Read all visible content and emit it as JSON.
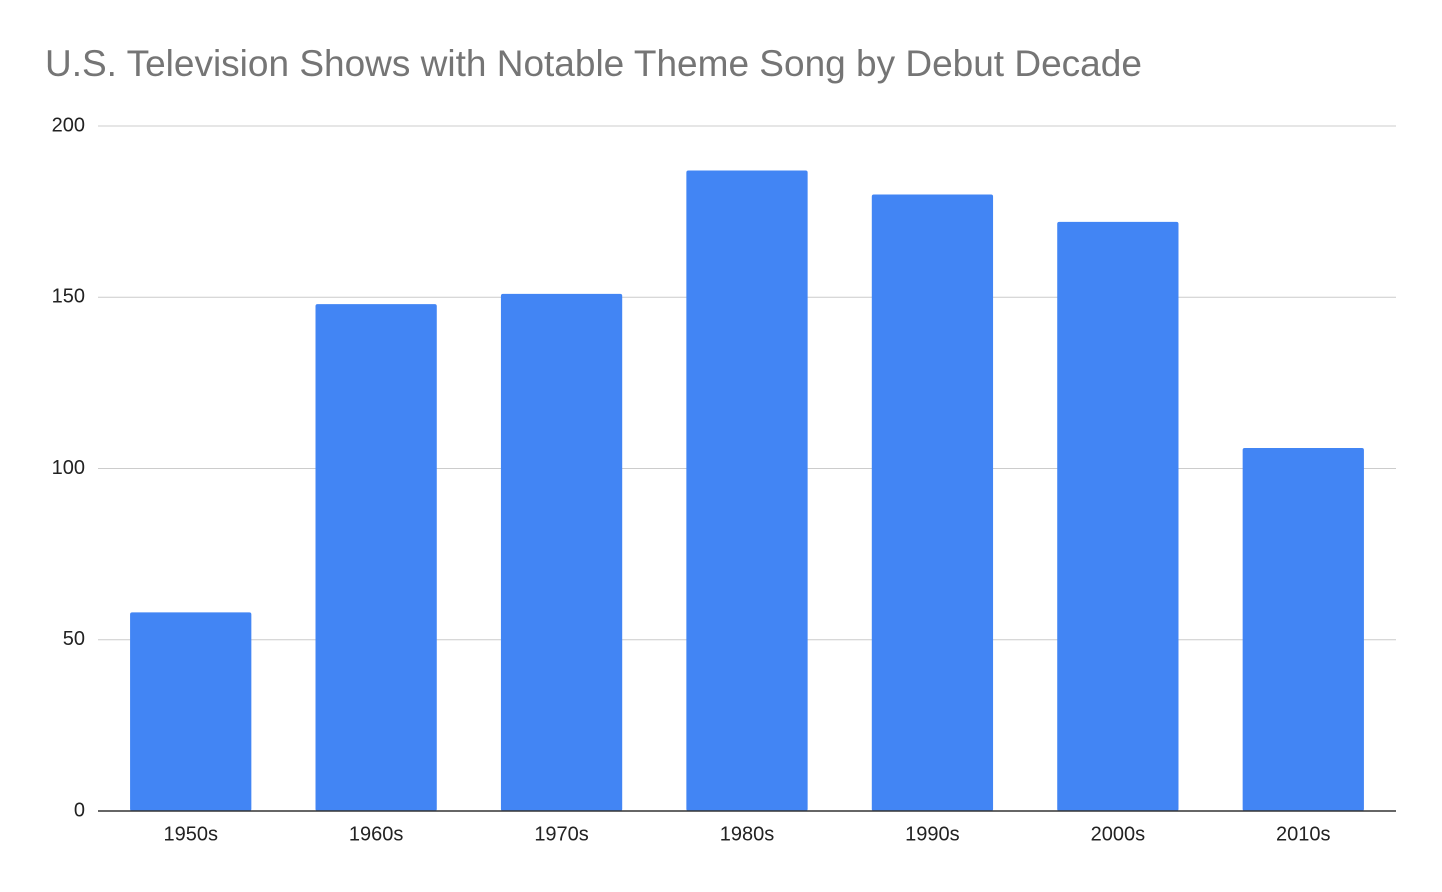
{
  "chart_data": {
    "type": "bar",
    "title": "U.S. Television Shows with Notable Theme Song by Debut Decade",
    "categories": [
      "1950s",
      "1960s",
      "1970s",
      "1980s",
      "1990s",
      "2000s",
      "2010s"
    ],
    "values": [
      58,
      148,
      151,
      187,
      180,
      172,
      106
    ],
    "color": "#4285f4",
    "ylim": [
      0,
      200
    ],
    "yticks": [
      0,
      50,
      100,
      150,
      200
    ],
    "grid": true
  }
}
